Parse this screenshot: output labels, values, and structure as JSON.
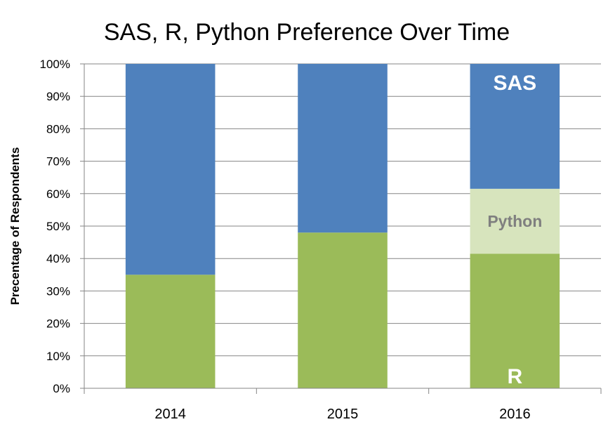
{
  "chart_data": {
    "type": "bar",
    "stacked": true,
    "title": "SAS, R, Python Preference Over Time",
    "xlabel": "",
    "ylabel": "Precentage of Respondents",
    "ylim": [
      0,
      100
    ],
    "yticks": [
      0,
      10,
      20,
      30,
      40,
      50,
      60,
      70,
      80,
      90,
      100
    ],
    "ytick_labels": [
      "0%",
      "10%",
      "20%",
      "30%",
      "40%",
      "50%",
      "60%",
      "70%",
      "80%",
      "90%",
      "100%"
    ],
    "categories": [
      "2014",
      "2015",
      "2016"
    ],
    "grid": true,
    "legend": "none",
    "series": [
      {
        "name": "R",
        "values": [
          35,
          48,
          41.5
        ],
        "color": "#9BBB59"
      },
      {
        "name": "Python",
        "values": [
          0,
          0,
          20
        ],
        "color": "#D7E4BD"
      },
      {
        "name": "SAS",
        "values": [
          65,
          52,
          38.5
        ],
        "color": "#4F81BD"
      }
    ],
    "annotations": [
      {
        "text": "SAS",
        "series": "SAS",
        "category": "2016",
        "color": "#FFFFFF",
        "placement": "top"
      },
      {
        "text": "Python",
        "series": "Python",
        "category": "2016",
        "color": "#7F7F7F",
        "placement": "middle"
      },
      {
        "text": "R",
        "series": "R",
        "category": "2016",
        "color": "#FFFFFF",
        "placement": "bottom"
      }
    ]
  }
}
